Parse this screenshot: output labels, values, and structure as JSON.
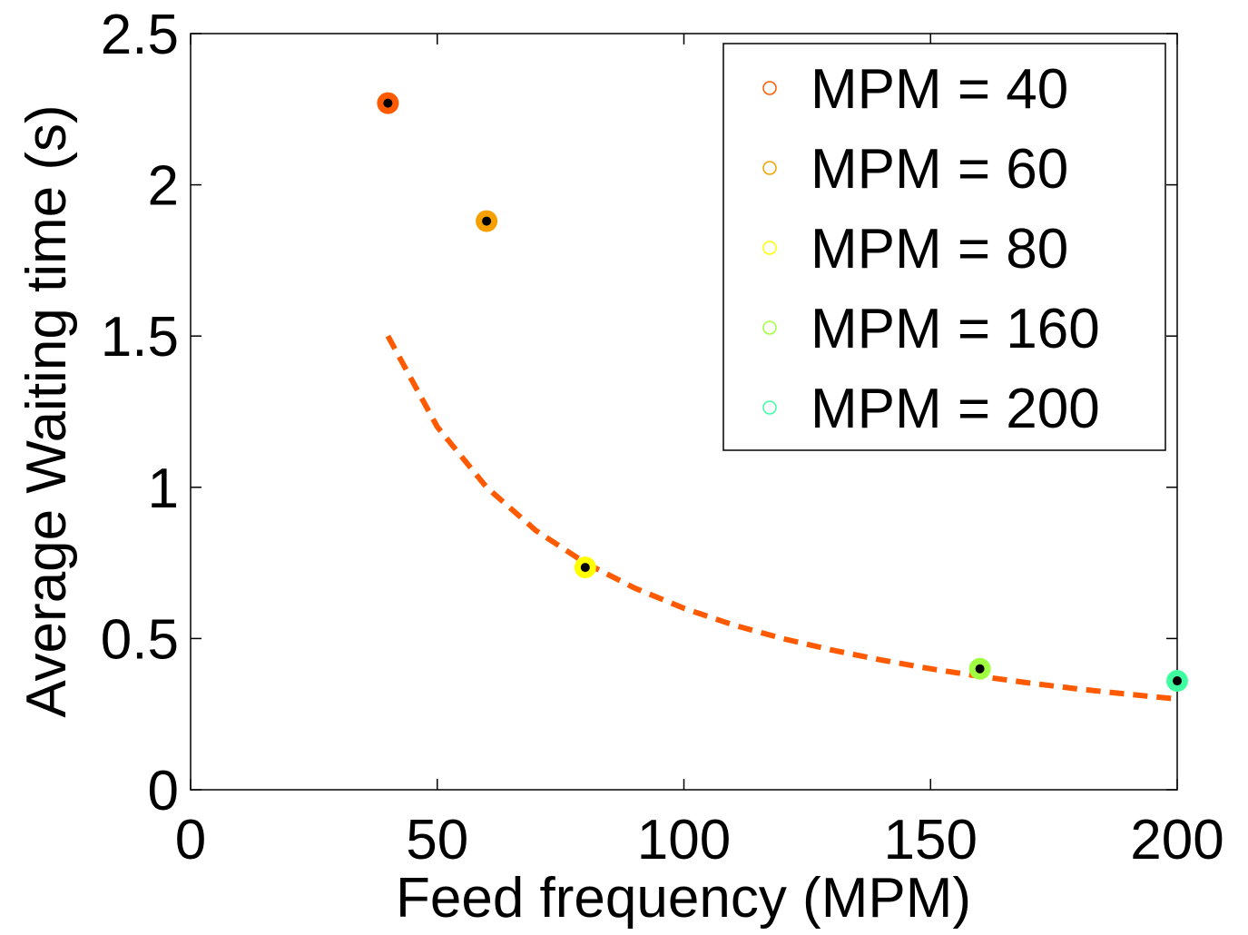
{
  "chart_data": {
    "type": "scatter",
    "xlabel": "Feed frequency (MPM)",
    "ylabel": "Average Waiting time (s)",
    "xlim": [
      0,
      200
    ],
    "ylim": [
      0,
      2.5
    ],
    "xticks": [
      0,
      50,
      100,
      150,
      200
    ],
    "yticks": [
      0,
      0.5,
      1,
      1.5,
      2,
      2.5
    ],
    "legend": "upper right",
    "series": [
      {
        "name": "MPM = 40",
        "color": "#ff5a00",
        "x": [
          40
        ],
        "values": [
          2.27
        ]
      },
      {
        "name": "MPM = 60",
        "color": "#f5a000",
        "x": [
          60
        ],
        "values": [
          1.88
        ]
      },
      {
        "name": "MPM = 80",
        "color": "#ffff00",
        "x": [
          80
        ],
        "values": [
          0.735
        ]
      },
      {
        "name": "MPM = 160",
        "color": "#a0ff40",
        "x": [
          160
        ],
        "values": [
          0.4
        ]
      },
      {
        "name": "MPM = 200",
        "color": "#40ffa0",
        "x": [
          200
        ],
        "values": [
          0.36
        ]
      }
    ],
    "fit": {
      "color": "#ff5a00",
      "x": [
        40,
        50,
        60,
        70,
        80,
        90,
        100,
        110,
        120,
        130,
        140,
        150,
        160,
        170,
        180,
        190,
        200
      ],
      "values": [
        1.5,
        1.2,
        1,
        0.857,
        0.75,
        0.667,
        0.6,
        0.545,
        0.5,
        0.462,
        0.429,
        0.4,
        0.375,
        0.353,
        0.333,
        0.316,
        0.3
      ]
    }
  }
}
